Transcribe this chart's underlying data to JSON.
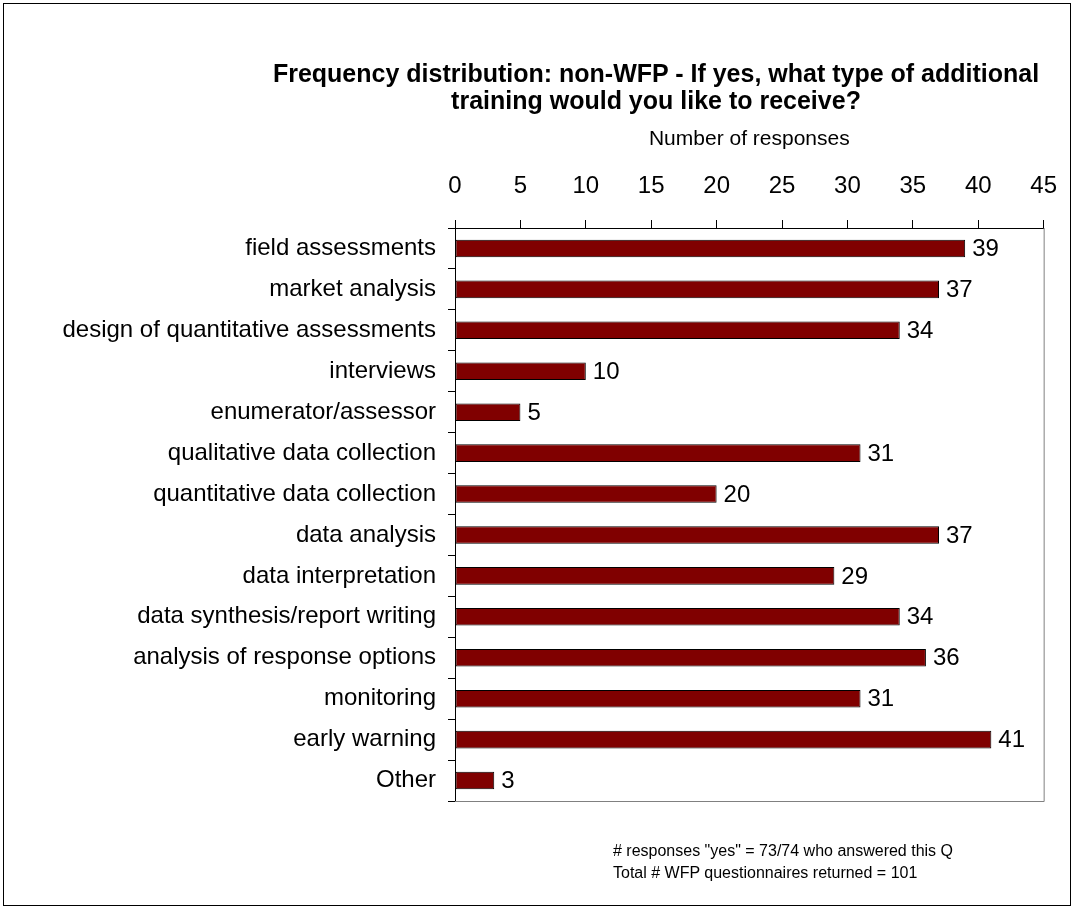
{
  "chart_data": {
    "type": "bar",
    "orientation": "horizontal",
    "title": "Frequency distribution: non-WFP - If yes, what type of additional training would you like to receive?",
    "xlabel": "Number of responses",
    "categories": [
      "field assessments",
      "market analysis",
      "design of quantitative assessments",
      "interviews",
      "enumerator/assessor",
      "qualitative data collection",
      "quantitative data collection",
      "data analysis",
      "data interpretation",
      "data synthesis/report writing",
      "analysis of response options",
      "monitoring",
      "early warning",
      "Other"
    ],
    "values": [
      39,
      37,
      34,
      10,
      5,
      31,
      20,
      37,
      29,
      34,
      36,
      31,
      41,
      3
    ],
    "color": "#800000",
    "xlim": [
      0,
      45
    ],
    "xticks": [
      0,
      5,
      10,
      15,
      20,
      25,
      30,
      35,
      40,
      45
    ],
    "data_labels": true,
    "annotations": [
      "# responses \"yes\" = 73/74 who answered this Q",
      "Total # WFP questionnaires returned = 101"
    ]
  }
}
